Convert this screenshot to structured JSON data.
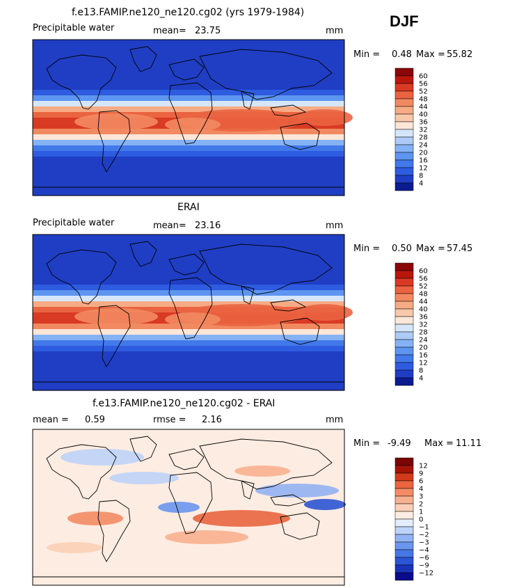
{
  "season": "DJF",
  "colors": {
    "full": [
      "#0b1c8f",
      "#1f3ec4",
      "#2e5ce0",
      "#4179ea",
      "#5d95f0",
      "#85b2f5",
      "#aecbf7",
      "#d6e6fa",
      "#fbe6d8",
      "#f8c8ab",
      "#f6ab84",
      "#f28a61",
      "#ea6441",
      "#d93a23",
      "#b8180c",
      "#8a0707"
    ],
    "diff": [
      "#0b0b8c",
      "#1a34b8",
      "#2c55d4",
      "#4677e4",
      "#6a96ee",
      "#92b3f3",
      "#bed3f8",
      "#e3edfb",
      "#fdece1",
      "#fbd0b7",
      "#f8b190",
      "#f38c66",
      "#e9663f",
      "#d13b1c",
      "#a31408",
      "#7a0505"
    ],
    "land_mask": "#000000"
  },
  "panels": [
    {
      "title": "f.e13.FAMIP.ne120_ne120.cg02 (yrs 1979-1984)",
      "left": "Precipitable water",
      "stat_label": "mean=",
      "stat_value": "23.75",
      "units": "mm",
      "min_label": "Min =",
      "min_value": "0.48",
      "max_label": "Max =",
      "max_value": "55.82"
    },
    {
      "title": "ERAI",
      "left": "Precipitable water",
      "stat_label": "mean=",
      "stat_value": "23.16",
      "units": "mm",
      "min_label": "Min =",
      "min_value": "0.50",
      "max_label": "Max =",
      "max_value": "57.45"
    },
    {
      "title": "f.e13.FAMIP.ne120_ne120.cg02 - ERAI",
      "left_label": "mean =",
      "left_value": "0.59",
      "stat_label": "rmse =",
      "stat_value": "2.16",
      "units": "mm",
      "min_label": "Min =",
      "min_value": "-9.49",
      "max_label": "Max =",
      "max_value": "11.11"
    }
  ],
  "chart_data": [
    {
      "type": "heatmap",
      "title": "f.e13.FAMIP.ne120_ne120.cg02 (yrs 1979-1984)",
      "variable": "Precipitable water",
      "units": "mm",
      "mean": 23.75,
      "min": 0.48,
      "max": 55.82,
      "colorbar_levels": [
        60,
        56,
        52,
        48,
        44,
        40,
        36,
        32,
        28,
        24,
        20,
        16,
        12,
        8,
        4
      ]
    },
    {
      "type": "heatmap",
      "title": "ERAI",
      "variable": "Precipitable water",
      "units": "mm",
      "mean": 23.16,
      "min": 0.5,
      "max": 57.45,
      "colorbar_levels": [
        60,
        56,
        52,
        48,
        44,
        40,
        36,
        32,
        28,
        24,
        20,
        16,
        12,
        8,
        4
      ]
    },
    {
      "type": "heatmap",
      "title": "f.e13.FAMIP.ne120_ne120.cg02 - ERAI",
      "units": "mm",
      "mean": 0.59,
      "rmse": 2.16,
      "min": -9.49,
      "max": 11.11,
      "colorbar_levels": [
        "12",
        "9",
        "6",
        "4",
        "3",
        "2",
        "1",
        "0",
        "−1",
        "−2",
        "−3",
        "−4",
        "−6",
        "−9",
        "−12"
      ]
    }
  ]
}
